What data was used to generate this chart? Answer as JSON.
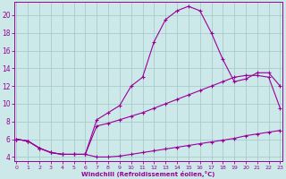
{
  "xlabel": "Windchill (Refroidissement éolien,°C)",
  "bg_color": "#cce8e8",
  "grid_color": "#a0c8c8",
  "line_color": "#990099",
  "xlim": [
    0,
    23
  ],
  "ylim": [
    3.5,
    21.5
  ],
  "xticks": [
    0,
    1,
    2,
    3,
    4,
    5,
    6,
    7,
    8,
    9,
    10,
    11,
    12,
    13,
    14,
    15,
    16,
    17,
    18,
    19,
    20,
    21,
    22,
    23
  ],
  "yticks": [
    4,
    6,
    8,
    10,
    12,
    14,
    16,
    18,
    20
  ],
  "line1_x": [
    0,
    1,
    2,
    3,
    4,
    5,
    6,
    7,
    8,
    9,
    10,
    11,
    12,
    13,
    14,
    15,
    16,
    17,
    18,
    19,
    20,
    21,
    22,
    23
  ],
  "line1_y": [
    6.0,
    5.8,
    5.0,
    4.5,
    4.3,
    4.3,
    4.3,
    4.0,
    4.0,
    4.1,
    4.3,
    4.5,
    4.7,
    4.9,
    5.1,
    5.3,
    5.5,
    5.7,
    5.9,
    6.1,
    6.4,
    6.6,
    6.8,
    7.0
  ],
  "line2_x": [
    0,
    1,
    2,
    3,
    4,
    5,
    6,
    7,
    8,
    9,
    10,
    11,
    12,
    13,
    14,
    15,
    16,
    17,
    18,
    19,
    20,
    21,
    22,
    23
  ],
  "line2_y": [
    6.0,
    5.8,
    5.0,
    4.5,
    4.3,
    4.3,
    4.3,
    7.5,
    7.8,
    8.2,
    8.6,
    9.0,
    9.5,
    10.0,
    10.5,
    11.0,
    11.5,
    12.0,
    12.5,
    13.0,
    13.2,
    13.2,
    13.0,
    9.5
  ],
  "line3_x": [
    0,
    1,
    2,
    3,
    4,
    5,
    6,
    7,
    8,
    9,
    10,
    11,
    12,
    13,
    14,
    15,
    16,
    17,
    18,
    19,
    20,
    21,
    22,
    23
  ],
  "line3_y": [
    6.0,
    5.8,
    5.0,
    4.5,
    4.3,
    4.3,
    4.3,
    8.2,
    9.0,
    9.8,
    12.0,
    13.0,
    17.0,
    19.5,
    20.5,
    21.0,
    20.5,
    18.0,
    15.0,
    12.5,
    12.8,
    13.5,
    13.5,
    12.0
  ]
}
